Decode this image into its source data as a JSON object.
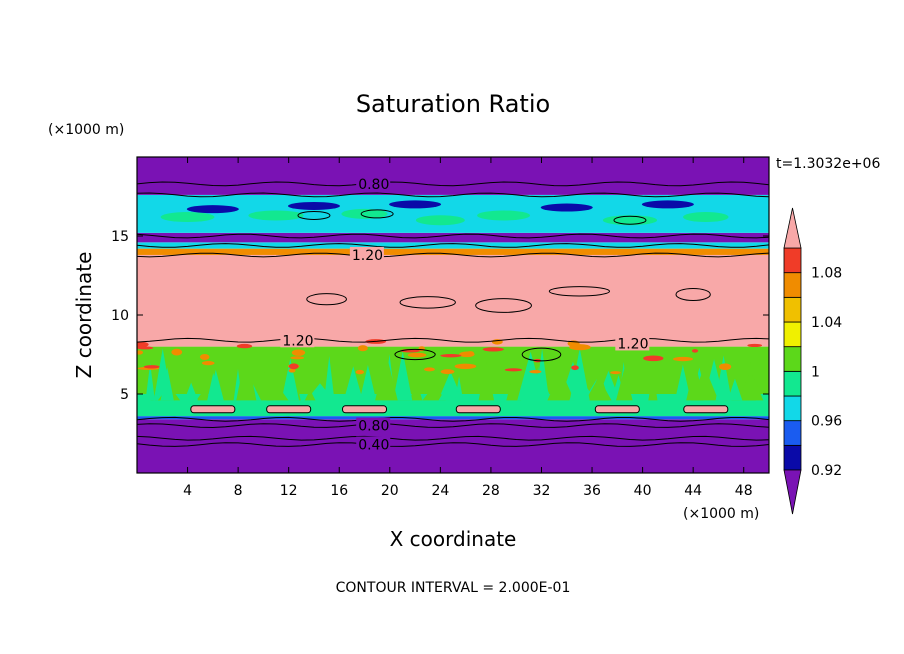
{
  "chart_data": {
    "type": "heatmap",
    "title": "Saturation Ratio",
    "xlabel": "X coordinate",
    "ylabel": "Z coordinate",
    "x_unit": "(×1000 m)",
    "y_unit": "(×1000 m)",
    "time_label": "t=1.3032e+06",
    "note": "CONTOUR INTERVAL = 2.000E-01",
    "xlim": [
      0,
      50
    ],
    "ylim": [
      0,
      20
    ],
    "x_ticks": [
      "4",
      "8",
      "12",
      "16",
      "20",
      "24",
      "28",
      "32",
      "36",
      "40",
      "44",
      "48"
    ],
    "y_ticks": [
      "5",
      "10",
      "15"
    ],
    "colorbar": {
      "levels": [
        0.9,
        0.92,
        0.94,
        0.96,
        0.98,
        1.0,
        1.02,
        1.04,
        1.06,
        1.08,
        1.1
      ],
      "tick_labels": [
        "0.92",
        "0.96",
        "1",
        "1.04",
        "1.08"
      ],
      "colors": [
        "#7a12b4",
        "#0a0aa8",
        "#1a5cf0",
        "#12d8e8",
        "#12e890",
        "#5cd81a",
        "#f0f000",
        "#f0c000",
        "#f08c00",
        "#f03c28",
        "#f8a8a8"
      ]
    },
    "contour_labels": [
      {
        "text": "0.80",
        "x": 17.5,
        "z": 18.3
      },
      {
        "text": "1.20",
        "x": 17.0,
        "z": 13.8
      },
      {
        "text": "1.20",
        "x": 11.5,
        "z": 8.4
      },
      {
        "text": "1.20",
        "x": 38.0,
        "z": 8.2
      },
      {
        "text": "0.80",
        "x": 17.5,
        "z": 3.0
      },
      {
        "text": "0.40",
        "x": 17.5,
        "z": 1.8
      }
    ],
    "bands": [
      {
        "z0": 0.0,
        "z1": 3.4,
        "value": 0.9
      },
      {
        "z0": 3.4,
        "z1": 3.6,
        "value": 0.94
      },
      {
        "z0": 3.6,
        "z1": 5.0,
        "value": 0.98
      },
      {
        "z0": 5.0,
        "z1": 8.0,
        "value": 1.0
      },
      {
        "z0": 8.0,
        "z1": 13.8,
        "value": 1.1
      },
      {
        "z0": 13.8,
        "z1": 14.2,
        "value": 1.06
      },
      {
        "z0": 14.2,
        "z1": 14.6,
        "value": 0.96
      },
      {
        "z0": 14.6,
        "z1": 15.2,
        "value": 0.9
      },
      {
        "z0": 15.2,
        "z1": 17.6,
        "value": 0.96
      },
      {
        "z0": 17.6,
        "z1": 20.0,
        "value": 0.9
      }
    ]
  }
}
